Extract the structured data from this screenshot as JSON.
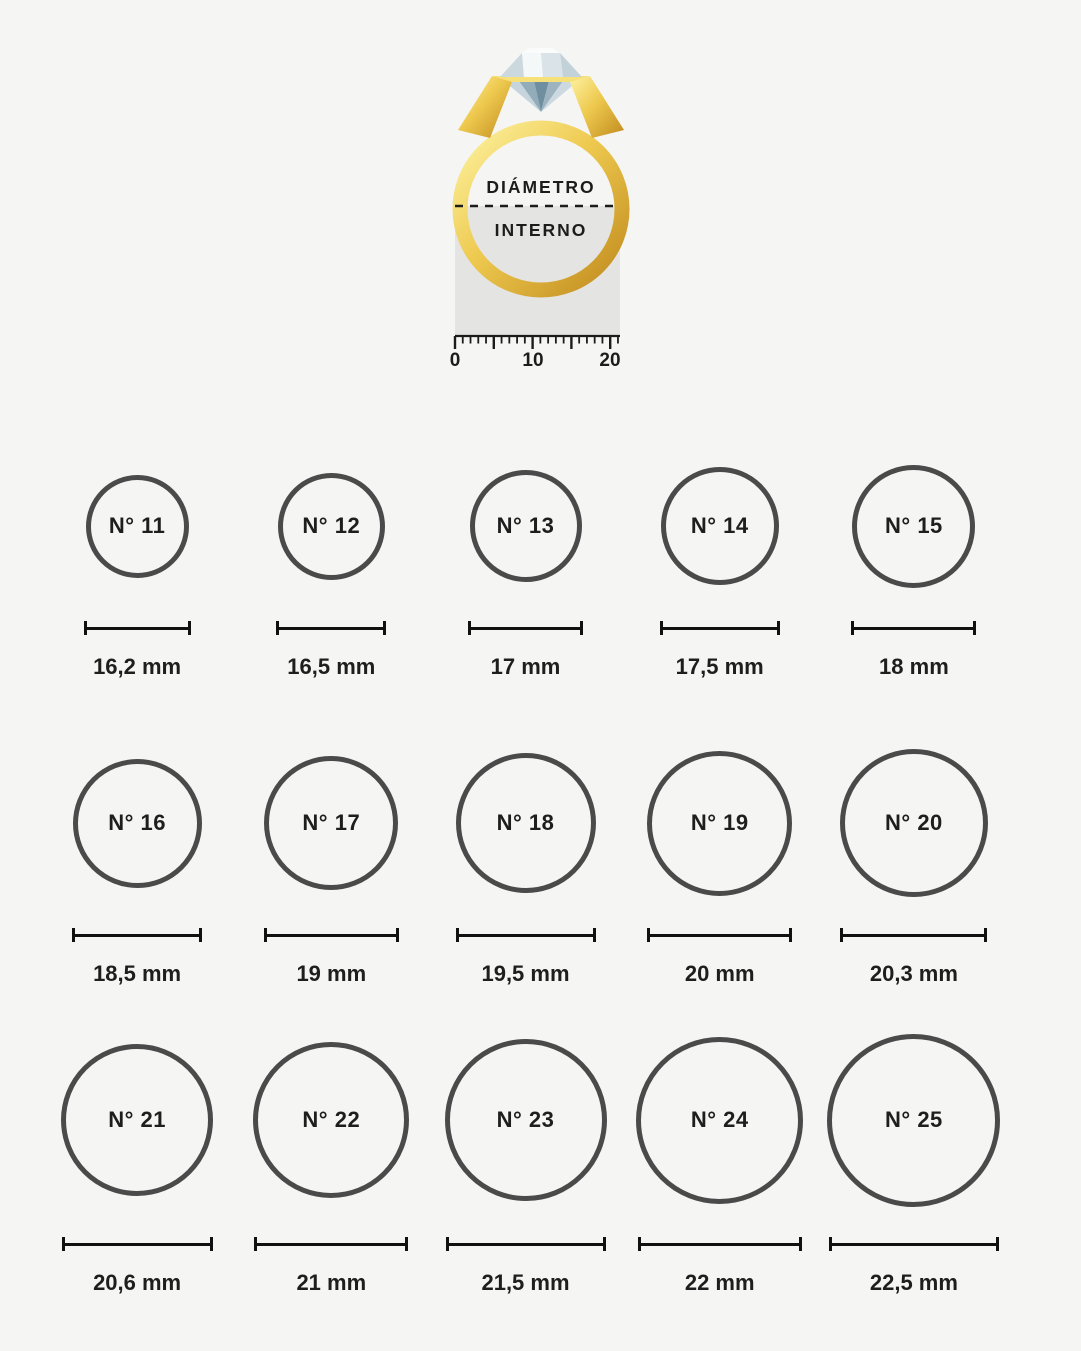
{
  "page": {
    "background_color": "#f5f5f4",
    "text_color": "#1e1e1e",
    "circle_stroke_color": "#4a4a4a",
    "dimension_line_color": "#111111"
  },
  "header_diagram": {
    "label_line1": "DIÁMETRO",
    "label_line2": "INTERNO",
    "ruler": {
      "labels": [
        "0",
        "10",
        "20"
      ],
      "tick_count": 22,
      "major_tick_every": 5
    },
    "colors": {
      "gold_light": "#fdf3a2",
      "gold_mid": "#eec94f",
      "gold_dark": "#c08a1d",
      "gold_bar": "#f6e07a",
      "panel_gray": "#e4e4e2",
      "diamond_light": "#f2f6f7",
      "diamond_dark": "#6f8fa0"
    }
  },
  "sizes": [
    {
      "number": "N° 11",
      "diameter_label": "16,2 mm",
      "mm": 16.2
    },
    {
      "number": "N° 12",
      "diameter_label": "16,5 mm",
      "mm": 16.5
    },
    {
      "number": "N° 13",
      "diameter_label": "17 mm",
      "mm": 17
    },
    {
      "number": "N° 14",
      "diameter_label": "17,5 mm",
      "mm": 17.5
    },
    {
      "number": "N° 15",
      "diameter_label": "18 mm",
      "mm": 18
    },
    {
      "number": "N° 16",
      "diameter_label": "18,5 mm",
      "mm": 18.5
    },
    {
      "number": "N° 17",
      "diameter_label": "19 mm",
      "mm": 19
    },
    {
      "number": "N° 18",
      "diameter_label": "19,5 mm",
      "mm": 19.5
    },
    {
      "number": "N° 19",
      "diameter_label": "20 mm",
      "mm": 20
    },
    {
      "number": "N° 20",
      "diameter_label": "20,3 mm",
      "mm": 20.3
    },
    {
      "number": "N° 21",
      "diameter_label": "20,6 mm",
      "mm": 20.6
    },
    {
      "number": "N° 22",
      "diameter_label": "21 mm",
      "mm": 21
    },
    {
      "number": "N° 23",
      "diameter_label": "21,5 mm",
      "mm": 21.5
    },
    {
      "number": "N° 24",
      "diameter_label": "22 mm",
      "mm": 22
    },
    {
      "number": "N° 25",
      "diameter_label": "22,5 mm",
      "mm": 22.5
    }
  ]
}
